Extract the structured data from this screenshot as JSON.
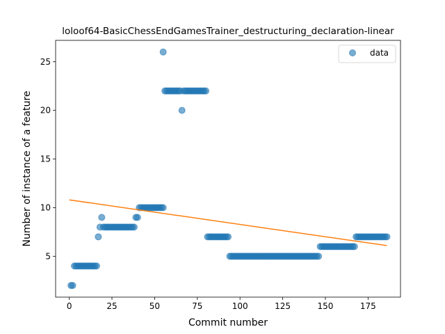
{
  "chart_data": {
    "type": "scatter",
    "title": "loloof64-BasicChessEndGamesTrainer_destructuring_declaration-linear",
    "xlabel": "Commit number",
    "ylabel": "Number of instance of a feature",
    "xlim": [
      -8,
      194
    ],
    "ylim": [
      0.8,
      27.2
    ],
    "xticks": [
      0,
      25,
      50,
      75,
      100,
      125,
      150,
      175
    ],
    "yticks": [
      5,
      10,
      15,
      20,
      25
    ],
    "grid": false,
    "legend": {
      "position": "top-right",
      "entries": [
        "data"
      ]
    },
    "colors": {
      "points": "#1f77b4",
      "trend": "#ff7f0e"
    },
    "series": [
      {
        "name": "data",
        "kind": "points",
        "runs": [
          [
            1,
            2,
            2
          ],
          [
            3,
            16,
            4
          ],
          [
            17,
            17,
            7
          ],
          [
            18,
            18,
            8
          ],
          [
            19,
            19,
            9
          ],
          [
            20,
            38,
            8
          ],
          [
            39,
            40,
            9
          ],
          [
            41,
            55,
            10
          ],
          [
            55,
            55,
            26
          ],
          [
            56,
            65,
            22
          ],
          [
            66,
            66,
            20
          ],
          [
            67,
            80,
            22
          ],
          [
            81,
            93,
            7
          ],
          [
            94,
            146,
            5
          ],
          [
            147,
            167,
            6
          ],
          [
            168,
            186,
            7
          ]
        ]
      },
      {
        "kind": "trend",
        "x": [
          0,
          186
        ],
        "y": [
          10.8,
          6.1
        ]
      }
    ]
  }
}
